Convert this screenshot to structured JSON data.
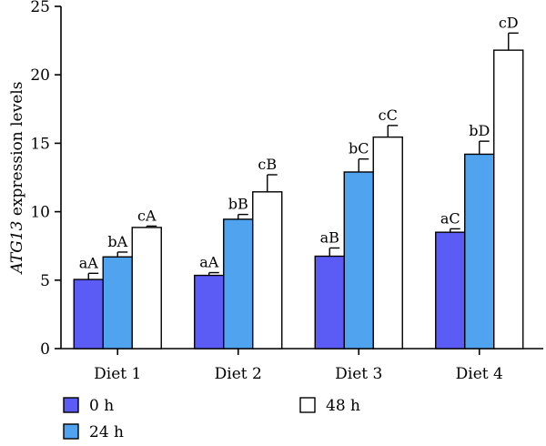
{
  "chart_data": {
    "type": "bar",
    "ylabel_italic": "ATG13",
    "ylabel_rest": " expression levels",
    "ylim": [
      0,
      25
    ],
    "yticks": [
      0,
      5,
      10,
      15,
      20,
      25
    ],
    "ytick_labels": [
      "0",
      "5",
      "10",
      "15",
      "20",
      "25"
    ],
    "categories": [
      "Diet 1",
      "Diet 2",
      "Diet 3",
      "Diet 4"
    ],
    "grid": false,
    "legend_position": "bottom",
    "series": [
      {
        "name": "0 h",
        "color": "#5b5bf5",
        "values": [
          5.05,
          5.35,
          6.75,
          8.5
        ],
        "errors": [
          0.45,
          0.2,
          0.6,
          0.25
        ],
        "labels": [
          "aA",
          "aA",
          "aB",
          "aC"
        ]
      },
      {
        "name": "24 h",
        "color": "#4fa3ef",
        "values": [
          6.7,
          9.45,
          12.9,
          14.2
        ],
        "errors": [
          0.35,
          0.35,
          0.95,
          0.95
        ],
        "labels": [
          "bA",
          "bB",
          "bC",
          "bD"
        ]
      },
      {
        "name": "48 h",
        "color": "#ffffff",
        "values": [
          8.85,
          11.45,
          15.45,
          21.8
        ],
        "errors": [
          0.1,
          1.25,
          0.85,
          1.25
        ],
        "labels": [
          "cA",
          "cB",
          "cC",
          "cD"
        ]
      }
    ]
  }
}
